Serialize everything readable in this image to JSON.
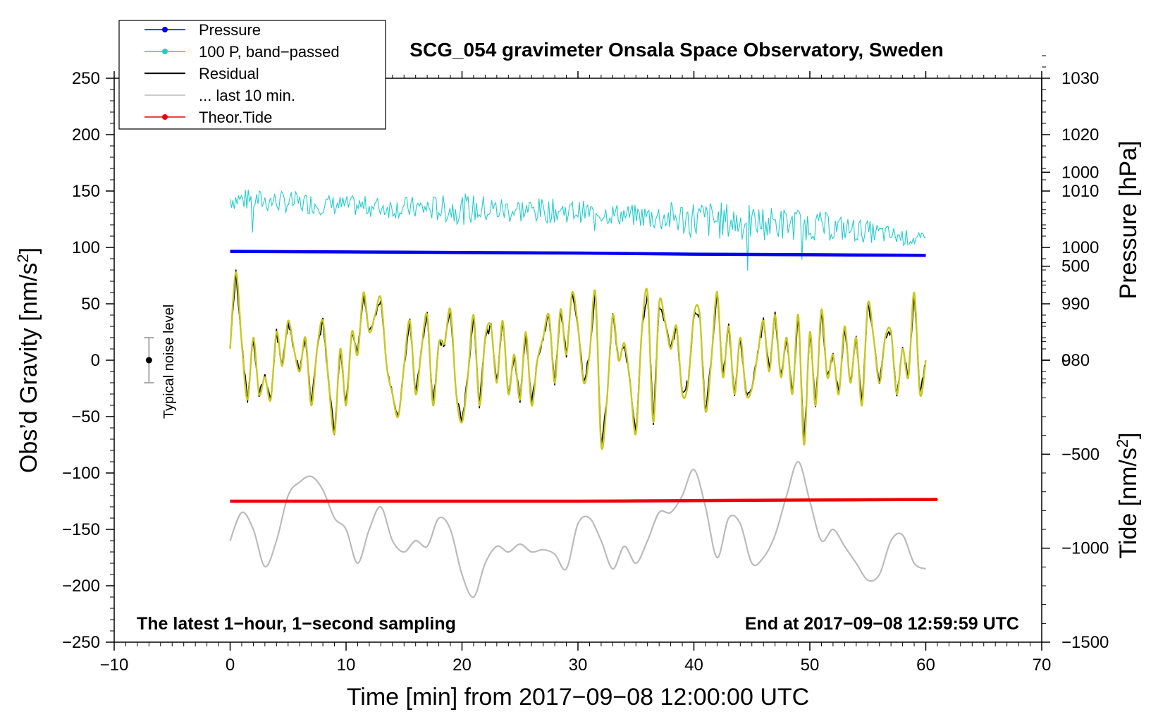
{
  "chart_data": {
    "type": "line",
    "title": "SCG_054 gravimeter Onsala Space Observatory, Sweden",
    "xlabel": "Time [min] from 2017−09−08 12:00:00 UTC",
    "ylabel_left": "Obs’d Gravity [nm/s",
    "ylabel_left_sup": "2",
    "ylabel_left_tail": "]",
    "ylabel_right_pressure": "Pressure [hPa]",
    "ylabel_right_tide": "Tide [nm/s",
    "ylabel_right_tide_sup": "2",
    "ylabel_right_tide_tail": "]",
    "xlim": [
      -10,
      70
    ],
    "ylim_left": [
      -250,
      250
    ],
    "pressure_axis": {
      "ticks": [
        980,
        990,
        1000,
        1010,
        1020,
        1030
      ],
      "anchor_left": [
        100,
        1000
      ],
      "hpa_per_unit": 0.2
    },
    "tide_axis": {
      "ticks": [
        -1500,
        -1000,
        -500,
        0,
        500,
        1000
      ],
      "range": [
        -1500,
        1500
      ]
    },
    "x_ticks": [
      "−10",
      "0",
      "10",
      "20",
      "30",
      "40",
      "50",
      "60",
      "70"
    ],
    "x_tick_values": [
      -10,
      0,
      10,
      20,
      30,
      40,
      50,
      60,
      70
    ],
    "y_ticks": [
      "250",
      "200",
      "150",
      "100",
      "50",
      "0",
      "−50",
      "−100",
      "−150",
      "−200",
      "−250"
    ],
    "y_tick_values": [
      250,
      200,
      150,
      100,
      50,
      0,
      -50,
      -100,
      -150,
      -200,
      -250
    ],
    "pressure_tick_labels": [
      "980",
      "990",
      "1000",
      "1010",
      "1020",
      "1030"
    ],
    "tide_tick_labels": [
      "−1500",
      "−1000",
      "−500",
      "0",
      "500",
      "1000"
    ],
    "annotation_left": "The latest 1−hour, 1−second sampling",
    "annotation_right": "End at 2017−09−08 12:59:59 UTC",
    "noise_label": "Typical noise level",
    "noise_bar": {
      "x": -7,
      "center": 0,
      "half_range": 20
    },
    "legend": [
      {
        "label": "Pressure",
        "color": "#0000ee",
        "marker": true
      },
      {
        "label": "100 P, band−passed",
        "color": "#22cccc",
        "marker": true
      },
      {
        "label": "Residual",
        "color": "#000000",
        "marker": false
      },
      {
        "label": "... last 10 min.",
        "color": "#bbbbbb",
        "marker": false
      },
      {
        "label": "Theor.Tide",
        "color": "#ee0000",
        "marker": true
      }
    ],
    "series": [
      {
        "name": "Pressure",
        "color": "#0000ee",
        "x": [
          0,
          10,
          20,
          30,
          40,
          50,
          60
        ],
        "y": [
          96.5,
          96,
          95.5,
          95,
          94,
          93.5,
          93
        ]
      },
      {
        "name": "100 P, band-passed",
        "color": "#22cccc",
        "x": [
          0,
          5,
          10,
          15,
          20,
          25,
          30,
          35,
          40,
          45,
          50,
          55,
          60
        ],
        "y": [
          143,
          140,
          137,
          135,
          134,
          133,
          132,
          128,
          125,
          122,
          120,
          114,
          106
        ],
        "noise_amp": [
          10,
          10,
          9,
          10,
          14,
          12,
          10,
          10,
          18,
          16,
          14,
          10,
          6
        ]
      },
      {
        "name": "Residual",
        "color": "#000000",
        "x": [
          0,
          0.5,
          1,
          1.5,
          2,
          2.5,
          3,
          3.5,
          4,
          4.5,
          5,
          5.5,
          6,
          6.5,
          7,
          7.5,
          8,
          8.5,
          9,
          9.5,
          10,
          10.5,
          11,
          11.5,
          12,
          12.5,
          13,
          13.5,
          14,
          14.5,
          15,
          15.5,
          16,
          16.5,
          17,
          17.5,
          18,
          18.5,
          19,
          19.5,
          20,
          20.5,
          21,
          21.5,
          22,
          22.5,
          23,
          23.5,
          24,
          24.5,
          25,
          25.5,
          26,
          26.5,
          27,
          27.5,
          28,
          28.5,
          29,
          29.5,
          30,
          30.5,
          31,
          31.5,
          32,
          32.5,
          33,
          33.5,
          34,
          34.5,
          35,
          35.5,
          36,
          36.5,
          37,
          37.5,
          38,
          38.5,
          39,
          39.5,
          40,
          40.5,
          41,
          41.5,
          42,
          42.5,
          43,
          43.5,
          44,
          44.5,
          45,
          45.5,
          46,
          46.5,
          47,
          47.5,
          48,
          48.5,
          49,
          49.5,
          50,
          50.5,
          51,
          51.5,
          52,
          52.5,
          53,
          53.5,
          54,
          54.5,
          55,
          55.5,
          56,
          56.5,
          57,
          57.5,
          58,
          58.5,
          59,
          59.5,
          60
        ],
        "y": [
          10,
          78,
          15,
          -35,
          20,
          -30,
          -15,
          -35,
          25,
          -5,
          35,
          10,
          -10,
          20,
          -40,
          10,
          35,
          -20,
          -65,
          10,
          -40,
          25,
          5,
          60,
          25,
          40,
          55,
          -5,
          -30,
          -50,
          -5,
          35,
          -30,
          10,
          40,
          -40,
          15,
          15,
          45,
          -30,
          -55,
          -15,
          40,
          -40,
          20,
          30,
          -20,
          35,
          -30,
          5,
          -35,
          25,
          -40,
          0,
          20,
          40,
          -20,
          45,
          5,
          60,
          30,
          -20,
          5,
          60,
          -75,
          -35,
          40,
          0,
          15,
          -20,
          -65,
          25,
          60,
          -55,
          50,
          35,
          10,
          30,
          -30,
          -20,
          40,
          40,
          -45,
          0,
          60,
          -15,
          30,
          -30,
          20,
          -30,
          -25,
          5,
          35,
          -10,
          40,
          -15,
          20,
          -30,
          40,
          -75,
          25,
          -40,
          45,
          -15,
          5,
          -30,
          30,
          -20,
          20,
          -40,
          50,
          20,
          -20,
          20,
          25,
          -30,
          10,
          -15,
          60,
          -30,
          0
        ]
      },
      {
        "name": "... last 10 min.",
        "color": "#bbbbbb",
        "x": [
          0,
          1,
          2,
          3,
          4,
          5,
          6,
          7,
          8,
          9,
          10,
          11,
          12,
          13,
          14,
          15,
          16,
          17,
          18,
          19,
          20,
          21,
          22,
          23,
          24,
          25,
          26,
          27,
          28,
          29,
          30,
          31,
          32,
          33,
          34,
          35,
          36,
          37,
          38,
          39,
          40,
          41,
          42,
          43,
          44,
          45,
          46,
          47,
          48,
          49,
          50,
          51,
          52,
          53,
          54,
          55,
          56,
          57,
          58,
          59,
          60
        ],
        "y": [
          -160,
          -135,
          -150,
          -183,
          -160,
          -120,
          -108,
          -103,
          -115,
          -140,
          -150,
          -180,
          -150,
          -130,
          -160,
          -170,
          -160,
          -165,
          -140,
          -150,
          -190,
          -210,
          -180,
          -165,
          -170,
          -163,
          -170,
          -168,
          -172,
          -185,
          -145,
          -140,
          -160,
          -185,
          -165,
          -180,
          -160,
          -135,
          -135,
          -120,
          -97,
          -130,
          -175,
          -140,
          -145,
          -180,
          -175,
          -155,
          -120,
          -90,
          -125,
          -160,
          -150,
          -165,
          -180,
          -195,
          -190,
          -160,
          -155,
          -180,
          -185
        ]
      },
      {
        "name": "Theor.Tide",
        "color": "#ee0000",
        "x": [
          0,
          10,
          20,
          30,
          40,
          50,
          60,
          60.5
        ],
        "y": [
          -125,
          -125,
          -125,
          -125,
          -124.5,
          -124,
          -123.5,
          -123.5
        ]
      }
    ]
  }
}
